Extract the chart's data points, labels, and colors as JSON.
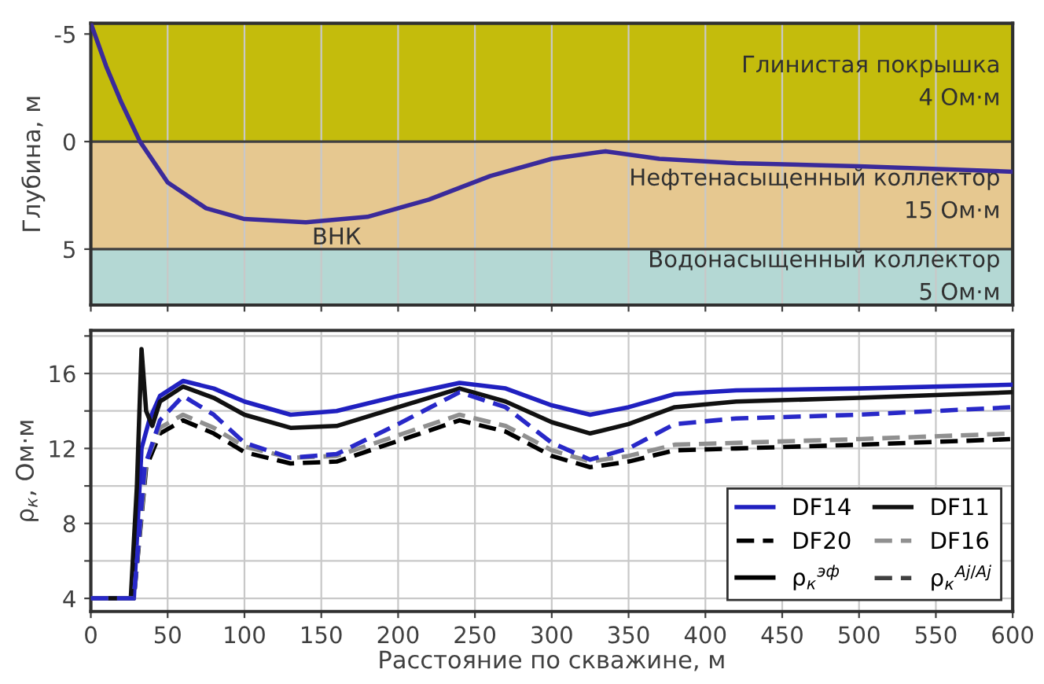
{
  "chart_data": [
    {
      "type": "line",
      "ylabel": "Глубина, м",
      "xlim": [
        0,
        600
      ],
      "xticks": [
        0,
        50,
        100,
        150,
        200,
        250,
        300,
        350,
        400,
        450,
        500,
        550,
        600
      ],
      "ylim": [
        7.6,
        -5.5
      ],
      "yticks": [
        -5,
        0,
        5
      ],
      "tick_labels": "y",
      "grid": "x",
      "series": [
        {
          "color": "#3a2a9a",
          "x": [
            0,
            10,
            20,
            32,
            50,
            75,
            100,
            140,
            180,
            220,
            260,
            300,
            335,
            370,
            420,
            500,
            600
          ],
          "values": [
            -5.5,
            -3.5,
            -1.8,
            0,
            1.9,
            3.1,
            3.6,
            3.75,
            3.5,
            2.7,
            1.6,
            0.8,
            0.45,
            0.8,
            1.0,
            1.15,
            1.4
          ]
        }
      ],
      "bands": [
        {
          "axis": "y",
          "from": -5.5,
          "to": 0,
          "label": "Глинистая покрышка\n4 Ом·м",
          "color": "#c4bc0c"
        },
        {
          "axis": "y",
          "from": 0,
          "to": 5,
          "label": "Нефтенасыщенный коллектор\n15 Ом·м",
          "color": "#e6c890"
        },
        {
          "axis": "y",
          "from": 5,
          "to": 7.6,
          "label": "Водонасыщенный коллектор\n5 Ом·м",
          "color": "#b4d8d4"
        }
      ],
      "ref_lines": [
        {
          "axis": "y",
          "value": 0,
          "label": null,
          "color": "#404040"
        },
        {
          "axis": "y",
          "value": 5,
          "label": "ВНК",
          "color": "#404040"
        }
      ]
    },
    {
      "type": "line",
      "xlabel": "Расстояние по скважине, м",
      "ylabel": "ρ$_{к}$, Ом·м",
      "xlim": [
        0,
        600
      ],
      "xticks": [
        0,
        50,
        100,
        150,
        200,
        250,
        300,
        350,
        400,
        450,
        500,
        550,
        600
      ],
      "ylim": [
        3.3,
        18.3
      ],
      "yticks": [
        4,
        {
          "value": 6,
          "label": null
        },
        8,
        {
          "value": 10,
          "label": null
        },
        12,
        {
          "value": 14,
          "label": null
        },
        16,
        {
          "value": 18,
          "label": null
        }
      ],
      "grid": true,
      "legend": "bottom right",
      "series": [
        {
          "name": "DF14",
          "color": "#2020c0",
          "line_style": "solid",
          "x": [
            0,
            25,
            28,
            33,
            38,
            45,
            60,
            80,
            100,
            130,
            160,
            200,
            240,
            270,
            300,
            325,
            350,
            380,
            420,
            500,
            600
          ],
          "values": [
            4,
            4,
            4,
            12,
            13.5,
            14.8,
            15.6,
            15.2,
            14.5,
            13.8,
            14.0,
            14.8,
            15.5,
            15.2,
            14.3,
            13.8,
            14.2,
            14.9,
            15.1,
            15.2,
            15.4
          ]
        },
        {
          "name": "DF11",
          "color": "#111111",
          "line_style": "solid",
          "x": [
            0,
            26,
            30,
            33,
            36,
            40,
            45,
            60,
            80,
            100,
            130,
            160,
            200,
            240,
            270,
            300,
            325,
            350,
            380,
            420,
            500,
            600
          ],
          "values": [
            4,
            4,
            10,
            17.3,
            14,
            13.2,
            14.5,
            15.3,
            14.7,
            13.8,
            13.1,
            13.2,
            14.2,
            15.2,
            14.5,
            13.4,
            12.8,
            13.3,
            14.2,
            14.5,
            14.7,
            15.0
          ]
        },
        {
          "name": "DF20",
          "color": "#000000",
          "line_style": "dashed",
          "x": [
            0,
            28,
            36,
            45,
            60,
            80,
            100,
            130,
            160,
            200,
            240,
            270,
            300,
            325,
            350,
            380,
            420,
            500,
            600
          ],
          "values": [
            4,
            4,
            11,
            12.8,
            13.5,
            12.8,
            11.8,
            11.2,
            11.3,
            12.4,
            13.5,
            12.9,
            11.6,
            11.0,
            11.3,
            11.9,
            12.0,
            12.2,
            12.5
          ]
        },
        {
          "name": "DF16",
          "color": "#909090",
          "line_style": "dashed",
          "x": [
            0,
            28,
            36,
            45,
            60,
            80,
            100,
            130,
            160,
            200,
            240,
            270,
            300,
            325,
            350,
            380,
            420,
            500,
            600
          ],
          "values": [
            4,
            4,
            11.3,
            13.1,
            13.8,
            13.1,
            12.1,
            11.5,
            11.6,
            12.7,
            13.8,
            13.2,
            11.9,
            11.3,
            11.6,
            12.2,
            12.3,
            12.5,
            12.8
          ]
        },
        {
          "name": "ρ$_{к}$$^{эф}$",
          "color": "#000000",
          "line_style": "solid"
        },
        {
          "name": "ρ$_{к}$$^{Aj/Aj}$",
          "color": "#404040",
          "line_style": "dashed"
        },
        {
          "color": "#2828c8",
          "line_style": "dashed",
          "x": [
            0,
            28,
            35,
            45,
            60,
            80,
            100,
            130,
            160,
            200,
            240,
            270,
            300,
            325,
            350,
            380,
            420,
            500,
            600
          ],
          "values": [
            4,
            4,
            11,
            13.5,
            14.8,
            13.8,
            12.3,
            11.5,
            11.7,
            13.3,
            15.0,
            14.2,
            12.3,
            11.4,
            12.0,
            13.3,
            13.6,
            13.8,
            14.2
          ]
        }
      ]
    }
  ]
}
